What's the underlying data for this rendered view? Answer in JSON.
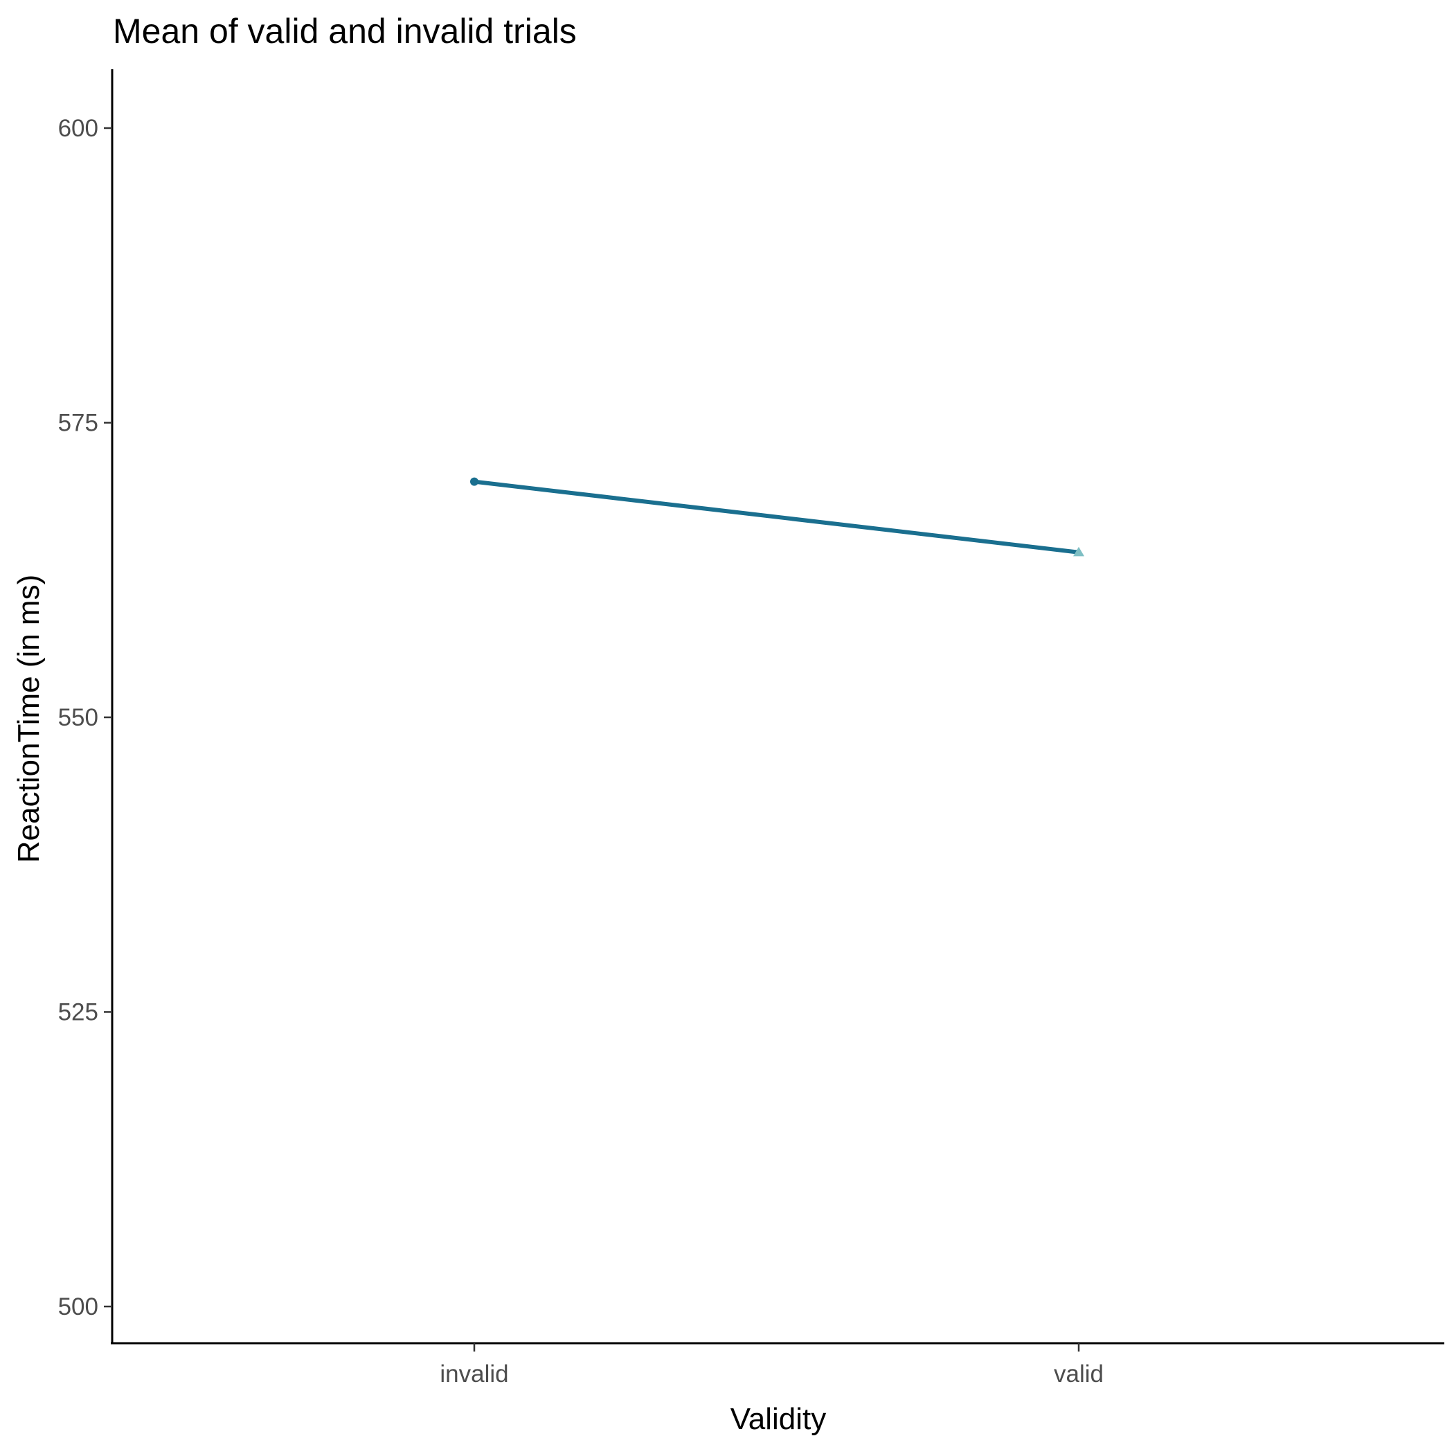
{
  "chart_data": {
    "type": "line",
    "title": "Mean of valid and invalid trials",
    "xlabel": "Validity",
    "ylabel": "ReactionTime (in ms)",
    "categories": [
      "invalid",
      "valid"
    ],
    "series": [
      {
        "values": [
          570.0,
          564.0
        ],
        "color": "#1a6f8f",
        "marker_colors": [
          "#1a6f8f",
          "#7fbfc4"
        ],
        "markers": [
          "circle",
          "triangle"
        ]
      }
    ],
    "yticks": [
      500,
      525,
      550,
      575,
      600
    ],
    "ylim": [
      495,
      605
    ],
    "grid": false,
    "legend": "none"
  }
}
